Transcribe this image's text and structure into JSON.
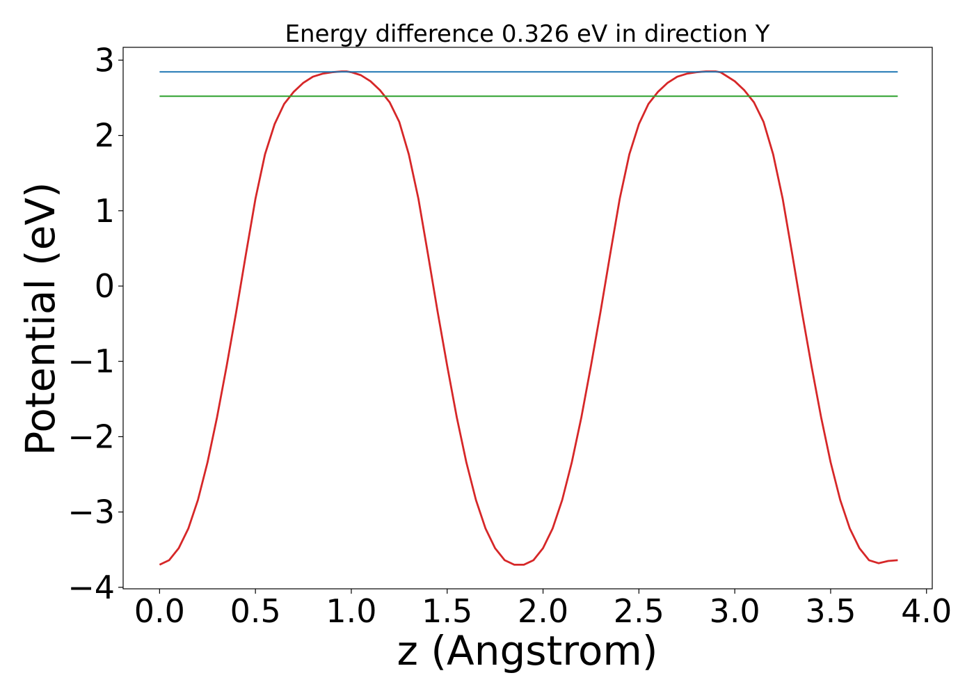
{
  "chart_data": {
    "type": "line",
    "title": "Energy difference 0.326 eV in direction Y",
    "xlabel": "z (Angstrom)",
    "ylabel": "Potential (eV)",
    "xlim": [
      -0.19,
      4.03
    ],
    "ylim": [
      -4.02,
      3.17
    ],
    "xticks": [
      0.0,
      0.5,
      1.0,
      1.5,
      2.0,
      2.5,
      3.0,
      3.5,
      4.0
    ],
    "xtick_labels": [
      "0.0",
      "0.5",
      "1.0",
      "1.5",
      "2.0",
      "2.5",
      "3.0",
      "3.5",
      "4.0"
    ],
    "yticks": [
      -4,
      -3,
      -2,
      -1,
      0,
      1,
      2,
      3
    ],
    "ytick_labels": [
      "−4",
      "−3",
      "−2",
      "−1",
      "0",
      "1",
      "2",
      "3"
    ],
    "grid": false,
    "series": [
      {
        "color": "#d62728",
        "x": [
          0.0,
          0.05,
          0.1,
          0.15,
          0.2,
          0.25,
          0.3,
          0.35,
          0.4,
          0.45,
          0.5,
          0.55,
          0.6,
          0.65,
          0.7,
          0.75,
          0.8,
          0.85,
          0.9,
          0.95,
          0.975,
          1.0,
          1.05,
          1.1,
          1.15,
          1.2,
          1.25,
          1.3,
          1.35,
          1.4,
          1.45,
          1.5,
          1.55,
          1.6,
          1.65,
          1.7,
          1.75,
          1.8,
          1.85,
          1.9,
          1.95,
          2.0,
          2.05,
          2.1,
          2.15,
          2.2,
          2.25,
          2.3,
          2.35,
          2.4,
          2.45,
          2.5,
          2.55,
          2.6,
          2.65,
          2.7,
          2.75,
          2.8,
          2.85,
          2.9,
          2.925,
          2.95,
          3.0,
          3.05,
          3.1,
          3.15,
          3.2,
          3.25,
          3.3,
          3.35,
          3.4,
          3.45,
          3.5,
          3.55,
          3.6,
          3.65,
          3.7,
          3.75,
          3.8,
          3.85
        ],
        "y": [
          -3.7,
          -3.64,
          -3.48,
          -3.22,
          -2.84,
          -2.34,
          -1.74,
          -1.06,
          -0.34,
          0.42,
          1.16,
          1.75,
          2.15,
          2.42,
          2.58,
          2.7,
          2.78,
          2.82,
          2.84,
          2.85,
          2.85,
          2.84,
          2.8,
          2.72,
          2.6,
          2.44,
          2.18,
          1.75,
          1.16,
          0.42,
          -0.34,
          -1.06,
          -1.74,
          -2.34,
          -2.84,
          -3.22,
          -3.48,
          -3.64,
          -3.7,
          -3.7,
          -3.64,
          -3.48,
          -3.22,
          -2.84,
          -2.34,
          -1.74,
          -1.06,
          -0.34,
          0.42,
          1.16,
          1.75,
          2.15,
          2.42,
          2.58,
          2.7,
          2.78,
          2.82,
          2.84,
          2.85,
          2.85,
          2.84,
          2.8,
          2.72,
          2.6,
          2.44,
          2.18,
          1.75,
          1.16,
          0.42,
          -0.34,
          -1.06,
          -1.74,
          -2.34,
          -2.84,
          -3.22,
          -3.48,
          -3.64,
          -3.68,
          -3.65,
          -3.64
        ]
      },
      {
        "color": "#1f77b4",
        "x": [
          0.0,
          3.85
        ],
        "y": [
          2.845,
          2.845
        ]
      },
      {
        "color": "#2ca02c",
        "x": [
          0.0,
          3.85
        ],
        "y": [
          2.52,
          2.52
        ]
      }
    ]
  }
}
